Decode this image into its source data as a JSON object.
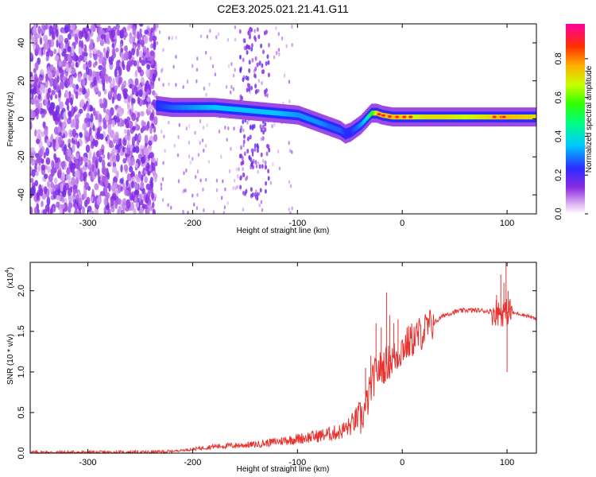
{
  "chart_data": [
    {
      "type": "heatmap",
      "title": "C2E3.2025.021.21.41.G11",
      "xlabel": "Height of straight line (km)",
      "ylabel": "Frequency (Hz)",
      "xlim": [
        -355,
        128
      ],
      "ylim": [
        -50,
        50
      ],
      "x_ticks": [
        -300,
        -200,
        -100,
        0,
        100
      ],
      "y_ticks": [
        -40,
        -20,
        0,
        20,
        40
      ],
      "colorbar": {
        "label": "Normalized spectral amplitude",
        "range": [
          0.0,
          0.98
        ],
        "ticks": [
          "0.0",
          "0.2",
          "0.4",
          "0.6",
          "0.8"
        ],
        "colormap": "rainbow (white-purple-blue-cyan-green-yellow-red)"
      },
      "ridge": {
        "x": [
          -235,
          -220,
          -200,
          -180,
          -160,
          -140,
          -120,
          -100,
          -90,
          -80,
          -70,
          -60,
          -55,
          -50,
          -45,
          -40,
          -35,
          -30,
          -25,
          -20,
          -10,
          0,
          10,
          20,
          40,
          60,
          80,
          100,
          128
        ],
        "freq": [
          7,
          6,
          6,
          6,
          5,
          4,
          3,
          2,
          0,
          -2,
          -4,
          -6,
          -8,
          -7,
          -5,
          -3,
          0,
          3,
          3,
          2,
          1,
          1,
          1,
          1,
          1,
          1,
          1,
          1,
          1
        ],
        "amplitude": [
          0.3,
          0.35,
          0.4,
          0.45,
          0.45,
          0.45,
          0.45,
          0.4,
          0.4,
          0.4,
          0.35,
          0.35,
          0.3,
          0.3,
          0.35,
          0.4,
          0.5,
          0.7,
          0.9,
          0.9,
          0.95,
          0.9,
          0.85,
          0.9,
          0.9,
          0.85,
          0.9,
          0.95,
          0.9
        ]
      }
    },
    {
      "type": "line",
      "xlabel": "Height of straight line (km)",
      "ylabel": "SNR (10 * v/v)",
      "y_multiplier_label": "(x10",
      "y_multiplier_exp": "4",
      "xlim": [
        -355,
        128
      ],
      "ylim": [
        0.0,
        2.35
      ],
      "x_ticks": [
        -300,
        -200,
        -100,
        0,
        100
      ],
      "y_ticks": [
        0.0,
        0.5,
        1.0,
        1.5,
        2.0
      ],
      "color": "#e8322e",
      "x": [
        -355,
        -300,
        -250,
        -220,
        -200,
        -180,
        -160,
        -140,
        -120,
        -100,
        -80,
        -60,
        -50,
        -40,
        -35,
        -30,
        -25,
        -20,
        -15,
        -10,
        -5,
        0,
        10,
        20,
        30,
        40,
        50,
        60,
        70,
        80,
        90,
        100,
        110,
        120,
        128
      ],
      "y": [
        0.01,
        0.01,
        0.01,
        0.02,
        0.04,
        0.07,
        0.08,
        0.09,
        0.12,
        0.15,
        0.18,
        0.22,
        0.28,
        0.4,
        0.55,
        0.8,
        1.0,
        1.05,
        1.1,
        1.15,
        1.2,
        1.3,
        1.4,
        1.5,
        1.6,
        1.7,
        1.74,
        1.76,
        1.76,
        1.75,
        1.74,
        1.73,
        1.72,
        1.69,
        1.65
      ],
      "spikes": [
        {
          "x": -25,
          "y": 1.6
        },
        {
          "x": -20,
          "y": 1.55
        },
        {
          "x": -15,
          "y": 1.98
        },
        {
          "x": -12,
          "y": 1.7
        },
        {
          "x": -8,
          "y": 1.6
        },
        {
          "x": -4,
          "y": 1.65
        },
        {
          "x": -30,
          "y": 1.2
        },
        {
          "x": -35,
          "y": 1.05
        },
        {
          "x": 90,
          "y": 1.95
        },
        {
          "x": 94,
          "y": 2.2
        },
        {
          "x": 97,
          "y": 2.1
        },
        {
          "x": 99,
          "y": 2.35
        },
        {
          "x": 101,
          "y": 2.0
        },
        {
          "x": 103,
          "y": 1.9
        },
        {
          "x": 100,
          "y": 1.0
        }
      ]
    }
  ]
}
